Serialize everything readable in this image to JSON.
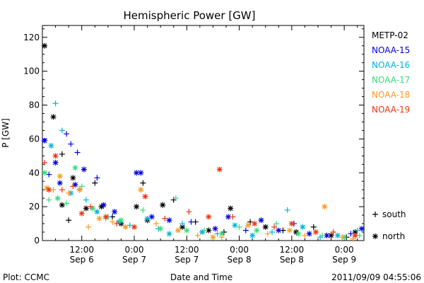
{
  "chart_data": {
    "type": "scatter",
    "title": "Hemispheric Power [GW]",
    "ylabel": "P [GW]",
    "xlabel": "Date and Time",
    "ylim": [
      0,
      127
    ],
    "xlim": [
      "2011-09-06 03:00",
      "2011-09-09 04:30"
    ],
    "yticks": [
      0,
      20,
      40,
      60,
      80,
      100,
      120
    ],
    "xticks": [
      {
        "t": "2011-09-06 12:00",
        "time": "12:00",
        "date": "Sep 6"
      },
      {
        "t": "2011-09-07 00:00",
        "time": "0:00",
        "date": "Sep 7"
      },
      {
        "t": "2011-09-07 12:00",
        "time": "12:00",
        "date": "Sep 7"
      },
      {
        "t": "2011-09-08 00:00",
        "time": "0:00",
        "date": "Sep 8"
      },
      {
        "t": "2011-09-08 12:00",
        "time": "12:00",
        "date": "Sep 8"
      },
      {
        "t": "2011-09-09 00:00",
        "time": "0:00",
        "date": "Sep 9"
      }
    ],
    "markers": [
      {
        "symbol": "+",
        "label": "south"
      },
      {
        "symbol": "*",
        "label": "north"
      }
    ],
    "series": [
      {
        "name": "METP-02",
        "color": "#000000",
        "points": [
          [
            "2011-09-06 03:30",
            115,
            "north"
          ],
          [
            "2011-09-06 05:30",
            73,
            "north"
          ],
          [
            "2011-09-06 07:30",
            51,
            "plus"
          ],
          [
            "2011-09-06 07:30",
            21,
            "north"
          ],
          [
            "2011-09-06 09:00",
            12,
            "plus"
          ],
          [
            "2011-09-06 10:00",
            37,
            "north"
          ],
          [
            "2011-09-06 11:30",
            30,
            "plus"
          ],
          [
            "2011-09-06 13:00",
            19,
            "north"
          ],
          [
            "2011-09-06 15:00",
            34,
            "plus"
          ],
          [
            "2011-09-06 16:30",
            20,
            "north"
          ],
          [
            "2011-09-06 19:00",
            14,
            "plus"
          ],
          [
            "2011-09-06 21:00",
            10,
            "north"
          ],
          [
            "2011-09-07 00:30",
            20,
            "north"
          ],
          [
            "2011-09-07 02:00",
            34,
            "plus"
          ],
          [
            "2011-09-07 03:00",
            12,
            "north"
          ],
          [
            "2011-09-07 06:30",
            21,
            "north"
          ],
          [
            "2011-09-07 09:00",
            24,
            "plus"
          ],
          [
            "2011-09-07 11:00",
            8,
            "north"
          ],
          [
            "2011-09-07 14:00",
            11,
            "plus"
          ],
          [
            "2011-09-07 17:00",
            6,
            "north"
          ],
          [
            "2011-09-07 20:30",
            5,
            "plus"
          ],
          [
            "2011-09-07 22:00",
            19,
            "north"
          ],
          [
            "2011-09-08 02:30",
            11,
            "plus"
          ],
          [
            "2011-09-08 06:00",
            8,
            "north"
          ],
          [
            "2011-09-08 10:00",
            6,
            "plus"
          ],
          [
            "2011-09-08 13:00",
            5,
            "north"
          ],
          [
            "2011-09-08 17:00",
            8,
            "plus"
          ],
          [
            "2011-09-08 21:00",
            3,
            "north"
          ],
          [
            "2011-09-09 00:30",
            2,
            "plus"
          ],
          [
            "2011-09-09 02:30",
            5,
            "north"
          ]
        ]
      },
      {
        "name": "NOAA-15",
        "color": "#0000dd",
        "points": [
          [
            "2011-09-06 03:30",
            59,
            "north"
          ],
          [
            "2011-09-06 04:30",
            39,
            "plus"
          ],
          [
            "2011-09-06 06:00",
            46,
            "north"
          ],
          [
            "2011-09-06 07:00",
            34,
            "north"
          ],
          [
            "2011-09-06 08:30",
            63,
            "plus"
          ],
          [
            "2011-09-06 09:30",
            57,
            "plus"
          ],
          [
            "2011-09-06 10:30",
            33,
            "north"
          ],
          [
            "2011-09-06 11:00",
            52,
            "plus"
          ],
          [
            "2011-09-06 12:30",
            42,
            "north"
          ],
          [
            "2011-09-06 15:30",
            37,
            "plus"
          ],
          [
            "2011-09-06 17:00",
            21,
            "north"
          ],
          [
            "2011-09-06 19:30",
            17,
            "north"
          ],
          [
            "2011-09-07 00:30",
            40,
            "north"
          ],
          [
            "2011-09-07 01:30",
            40,
            "north"
          ],
          [
            "2011-09-07 04:00",
            14,
            "north"
          ],
          [
            "2011-09-07 08:00",
            12,
            "north"
          ],
          [
            "2011-09-07 13:00",
            11,
            "plus"
          ],
          [
            "2011-09-07 18:30",
            7,
            "north"
          ],
          [
            "2011-09-07 21:30",
            14,
            "north"
          ],
          [
            "2011-09-08 01:30",
            6,
            "plus"
          ],
          [
            "2011-09-08 05:00",
            12,
            "north"
          ],
          [
            "2011-09-08 09:00",
            6,
            "north"
          ],
          [
            "2011-09-08 12:30",
            10,
            "plus"
          ],
          [
            "2011-09-08 16:00",
            4,
            "north"
          ],
          [
            "2011-09-08 20:00",
            3,
            "north"
          ],
          [
            "2011-09-09 01:30",
            4,
            "plus"
          ],
          [
            "2011-09-09 04:00",
            7,
            "north"
          ]
        ]
      },
      {
        "name": "NOAA-16",
        "color": "#00b4dc",
        "points": [
          [
            "2011-09-06 05:00",
            56,
            "north"
          ],
          [
            "2011-09-06 06:00",
            81,
            "plus"
          ],
          [
            "2011-09-06 07:30",
            65,
            "plus"
          ],
          [
            "2011-09-06 09:30",
            28,
            "north"
          ],
          [
            "2011-09-06 13:00",
            24,
            "plus"
          ],
          [
            "2011-09-06 15:30",
            17,
            "north"
          ],
          [
            "2011-09-06 18:00",
            14,
            "plus"
          ],
          [
            "2011-09-06 20:30",
            11,
            "north"
          ],
          [
            "2011-09-06 23:00",
            9,
            "plus"
          ],
          [
            "2011-09-07 03:00",
            13,
            "north"
          ],
          [
            "2011-09-07 05:30",
            7,
            "plus"
          ],
          [
            "2011-09-07 08:00",
            4,
            "north"
          ],
          [
            "2011-09-07 11:00",
            10,
            "plus"
          ],
          [
            "2011-09-07 15:30",
            5,
            "north"
          ],
          [
            "2011-09-07 19:00",
            4,
            "plus"
          ],
          [
            "2011-09-07 23:00",
            9,
            "north"
          ],
          [
            "2011-09-08 03:00",
            3,
            "north"
          ],
          [
            "2011-09-08 07:30",
            5,
            "plus"
          ],
          [
            "2011-09-08 11:00",
            18,
            "plus"
          ],
          [
            "2011-09-08 14:30",
            8,
            "north"
          ],
          [
            "2011-09-08 18:30",
            2,
            "plus"
          ],
          [
            "2011-09-08 22:30",
            3,
            "north"
          ],
          [
            "2011-09-09 03:00",
            6,
            "plus"
          ]
        ]
      },
      {
        "name": "NOAA-17",
        "color": "#33dd77",
        "points": [
          [
            "2011-09-06 03:30",
            40,
            "north"
          ],
          [
            "2011-09-06 04:30",
            24,
            "plus"
          ],
          [
            "2011-09-06 06:30",
            25,
            "north"
          ],
          [
            "2011-09-06 08:30",
            22,
            "plus"
          ],
          [
            "2011-09-06 10:30",
            43,
            "north"
          ],
          [
            "2011-09-06 12:00",
            32,
            "plus"
          ],
          [
            "2011-09-06 14:30",
            19,
            "north"
          ],
          [
            "2011-09-06 17:30",
            13,
            "plus"
          ],
          [
            "2011-09-06 21:00",
            12,
            "north"
          ],
          [
            "2011-09-07 02:00",
            18,
            "plus"
          ],
          [
            "2011-09-07 06:00",
            7,
            "north"
          ],
          [
            "2011-09-07 09:30",
            25,
            "plus"
          ],
          [
            "2011-09-07 12:00",
            6,
            "north"
          ],
          [
            "2011-09-07 16:00",
            6,
            "plus"
          ],
          [
            "2011-09-07 20:00",
            4,
            "north"
          ],
          [
            "2011-09-08 00:00",
            8,
            "plus"
          ],
          [
            "2011-09-08 04:00",
            6,
            "north"
          ],
          [
            "2011-09-08 08:30",
            10,
            "plus"
          ],
          [
            "2011-09-08 13:30",
            4,
            "north"
          ],
          [
            "2011-09-08 19:00",
            3,
            "plus"
          ],
          [
            "2011-09-09 00:00",
            2,
            "north"
          ],
          [
            "2011-09-09 03:30",
            3,
            "plus"
          ]
        ]
      },
      {
        "name": "NOAA-18",
        "color": "#ff9922",
        "points": [
          [
            "2011-09-06 04:00",
            31,
            "north"
          ],
          [
            "2011-09-06 05:30",
            30,
            "plus"
          ],
          [
            "2011-09-06 07:00",
            38,
            "north"
          ],
          [
            "2011-09-06 09:00",
            28,
            "plus"
          ],
          [
            "2011-09-06 11:30",
            30,
            "north"
          ],
          [
            "2011-09-06 13:30",
            8,
            "plus"
          ],
          [
            "2011-09-06 16:00",
            13,
            "north"
          ],
          [
            "2011-09-06 19:00",
            11,
            "plus"
          ],
          [
            "2011-09-06 22:00",
            8,
            "north"
          ],
          [
            "2011-09-07 01:30",
            30,
            "north"
          ],
          [
            "2011-09-07 05:00",
            10,
            "plus"
          ],
          [
            "2011-09-07 10:00",
            6,
            "north"
          ],
          [
            "2011-09-07 14:30",
            3,
            "plus"
          ],
          [
            "2011-09-07 18:00",
            2,
            "north"
          ],
          [
            "2011-09-07 20:00",
            2,
            "plus"
          ],
          [
            "2011-09-08 02:00",
            9,
            "north"
          ],
          [
            "2011-09-08 06:30",
            4,
            "plus"
          ],
          [
            "2011-09-08 11:30",
            6,
            "north"
          ],
          [
            "2011-09-08 15:00",
            3,
            "plus"
          ],
          [
            "2011-09-08 19:30",
            20,
            "north"
          ],
          [
            "2011-09-08 23:30",
            2,
            "plus"
          ],
          [
            "2011-09-09 02:00",
            1,
            "plus"
          ]
        ]
      },
      {
        "name": "NOAA-19",
        "color": "#ee3311",
        "points": [
          [
            "2011-09-06 03:30",
            46,
            "plus"
          ],
          [
            "2011-09-06 04:30",
            30,
            "north"
          ],
          [
            "2011-09-06 06:00",
            50,
            "north"
          ],
          [
            "2011-09-06 07:30",
            30,
            "plus"
          ],
          [
            "2011-09-06 10:00",
            32,
            "plus"
          ],
          [
            "2011-09-06 12:00",
            16,
            "north"
          ],
          [
            "2011-09-06 14:00",
            20,
            "plus"
          ],
          [
            "2011-09-06 17:30",
            14,
            "north"
          ],
          [
            "2011-09-06 20:00",
            10,
            "plus"
          ],
          [
            "2011-09-07 00:00",
            8,
            "north"
          ],
          [
            "2011-09-07 02:30",
            26,
            "north"
          ],
          [
            "2011-09-07 07:00",
            13,
            "plus"
          ],
          [
            "2011-09-07 12:30",
            17,
            "plus"
          ],
          [
            "2011-09-07 17:00",
            14,
            "north"
          ],
          [
            "2011-09-07 19:30",
            42,
            "north"
          ],
          [
            "2011-09-07 22:30",
            14,
            "plus"
          ],
          [
            "2011-09-08 03:30",
            10,
            "north"
          ],
          [
            "2011-09-08 08:00",
            8,
            "plus"
          ],
          [
            "2011-09-08 12:00",
            10,
            "north"
          ],
          [
            "2011-09-08 17:30",
            5,
            "north"
          ],
          [
            "2011-09-08 21:30",
            5,
            "plus"
          ],
          [
            "2011-09-09 02:30",
            3,
            "north"
          ]
        ]
      }
    ]
  },
  "footer": {
    "plot_credit": "Plot: CCMC",
    "timestamp": "2011/09/09 04:55:06"
  }
}
